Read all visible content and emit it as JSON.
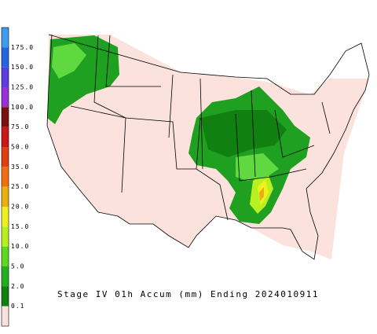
{
  "legend": {
    "labels": [
      "175.0",
      "150.0",
      "125.0",
      "100.0",
      "75.0",
      "50.0",
      "35.0",
      "25.0",
      "20.0",
      "15.0",
      "10.0",
      "5.0",
      "2.0",
      "0.1"
    ],
    "colors": [
      "#3c9cf0",
      "#2466e0",
      "#5a3ee0",
      "#9a30d8",
      "#7a1010",
      "#c81818",
      "#e04010",
      "#f07010",
      "#e8b010",
      "#f0f020",
      "#b8f020",
      "#60d820",
      "#20b020",
      "#108010",
      "#fbe2dc"
    ]
  },
  "caption": "Stage IV 01h Accum (mm) Ending 2024010911"
}
